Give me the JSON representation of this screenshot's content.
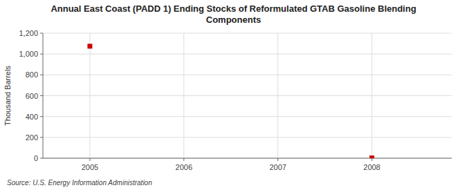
{
  "chart_data": {
    "type": "scatter",
    "title": "Annual East Coast (PADD 1) Ending Stocks of Reformulated GTAB Gasoline Blending\nComponents",
    "ylabel": "Thousand Barrels",
    "source": "Source: U.S. Energy Information Administration",
    "x": [
      2005,
      2008
    ],
    "values": [
      1075,
      3
    ],
    "xlim": [
      2004.5,
      2008.85
    ],
    "ylim": [
      0,
      1200
    ],
    "xticks": [
      2005,
      2006,
      2007,
      2008
    ],
    "yticks": [
      0,
      200,
      400,
      600,
      800,
      {
        "value": 1000,
        "label": "1,000"
      },
      {
        "value": 1200,
        "label": "1,200"
      }
    ],
    "color": "#cc0000",
    "marker": "square",
    "grid": true
  }
}
